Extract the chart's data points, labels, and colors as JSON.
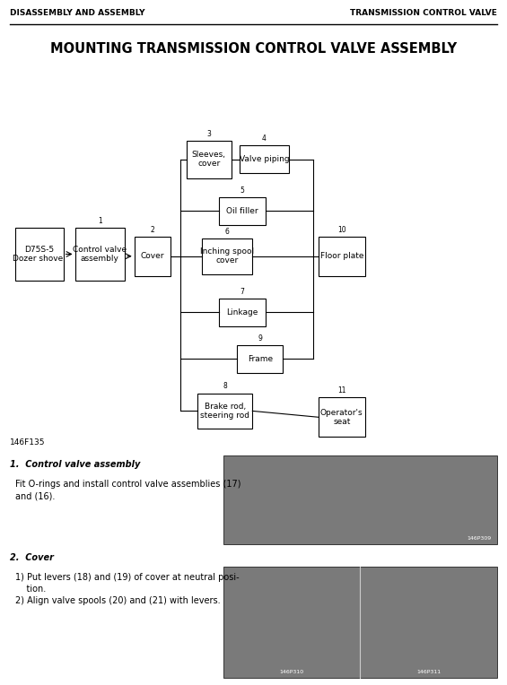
{
  "header_left": "DISASSEMBLY AND ASSEMBLY",
  "header_right": "TRANSMISSION CONTROL VALVE",
  "title": "MOUNTING TRANSMISSION CONTROL VALVE ASSEMBLY",
  "figure_label": "146F135",
  "section1_title": "1.  Control valve assembly",
  "section1_text_line1": "Fit O-rings and install control valve assemblies (17)",
  "section1_text_line2": "and (16).",
  "section2_title": "2.  Cover",
  "section2_text1": "1) Put levers (18) and (19) of cover at neutral posi-",
  "section2_text1b": "    tion.",
  "section2_text2": "2) Align valve spools (20) and (21) with levers.",
  "photo1_label": "146P309",
  "photo2a_label": "146P310",
  "photo2b_label": "146P311",
  "bg_color": "#ffffff",
  "text_color": "#000000"
}
